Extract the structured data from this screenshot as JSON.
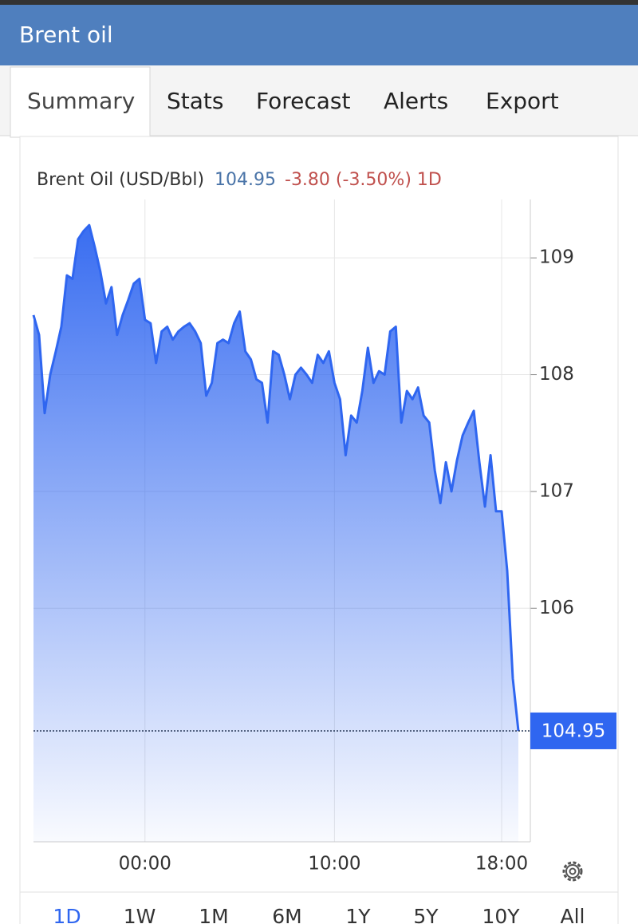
{
  "header": {
    "title": "Brent oil"
  },
  "tabs": [
    "Summary",
    "Stats",
    "Forecast",
    "Alerts",
    "Export"
  ],
  "chart_data": {
    "type": "line",
    "price": 104.95,
    "change": "-3.80 (-3.50%) 1D",
    "categories": [
      null,
      null,
      null,
      null,
      null,
      null,
      null,
      null,
      null,
      null,
      null,
      null,
      null,
      null,
      null,
      null,
      null,
      null,
      null,
      null,
      "00:00",
      null,
      null,
      null,
      null,
      null,
      null,
      null,
      null,
      null,
      null,
      null,
      null,
      null,
      null,
      null,
      null,
      null,
      null,
      null,
      null,
      null,
      null,
      null,
      null,
      null,
      null,
      null,
      null,
      null,
      null,
      null,
      null,
      null,
      "10:00",
      null,
      null,
      null,
      null,
      null,
      null,
      null,
      null,
      null,
      null,
      null,
      null,
      null,
      null,
      null,
      null,
      null,
      null,
      null,
      null,
      null,
      null,
      null,
      null,
      null,
      null,
      null,
      null,
      null,
      "18:00",
      null,
      null,
      null
    ],
    "series": [
      {
        "name": "Brent Oil (USD/Bbl)",
        "color": "#2f66f0",
        "values": [
          108.51,
          108.34,
          107.67,
          108.0,
          108.2,
          108.41,
          108.85,
          108.82,
          109.16,
          109.23,
          109.28,
          109.09,
          108.88,
          108.61,
          108.75,
          108.34,
          108.51,
          108.64,
          108.78,
          108.82,
          108.47,
          108.44,
          108.1,
          108.37,
          108.41,
          108.3,
          108.37,
          108.41,
          108.44,
          108.37,
          108.27,
          107.82,
          107.93,
          108.27,
          108.3,
          108.27,
          108.44,
          108.54,
          108.2,
          108.13,
          107.96,
          107.93,
          107.59,
          108.2,
          108.17,
          108.0,
          107.79,
          108.0,
          108.06,
          108.0,
          107.93,
          108.17,
          108.1,
          108.2,
          107.93,
          107.79,
          107.31,
          107.65,
          107.59,
          107.86,
          108.23,
          107.93,
          108.03,
          108.0,
          108.37,
          108.41,
          107.59,
          107.86,
          107.79,
          107.89,
          107.65,
          107.59,
          107.18,
          106.9,
          107.25,
          107.0,
          107.27,
          107.48,
          107.59,
          107.69,
          107.25,
          106.87,
          107.31,
          106.83,
          106.83,
          106.32,
          105.4,
          104.95
        ]
      }
    ],
    "ylim": [
      104,
      109.5
    ],
    "yticks": [
      106,
      107,
      108,
      109
    ],
    "grid": true
  },
  "ranges": [
    "1D",
    "1W",
    "1M",
    "6M",
    "1Y",
    "5Y",
    "10Y",
    "All"
  ]
}
